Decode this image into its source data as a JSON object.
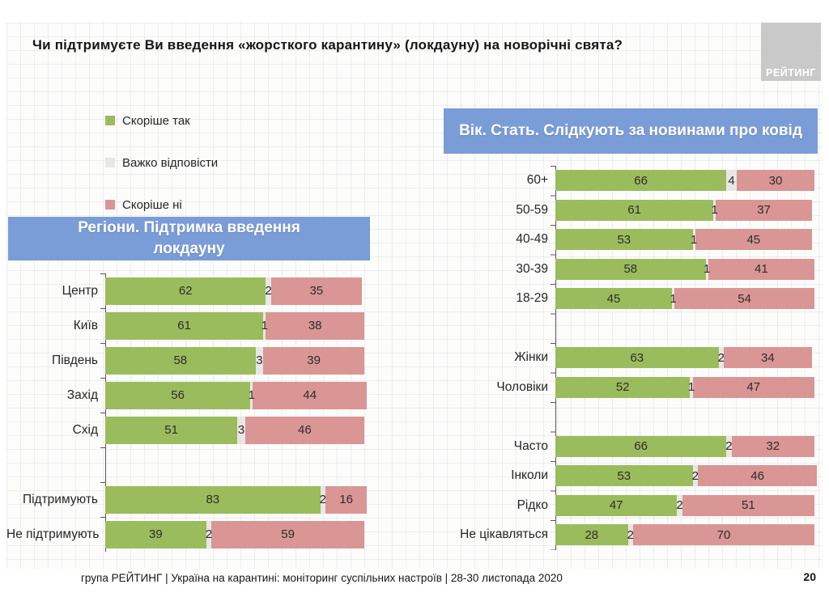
{
  "slide": {
    "title": "Чи підтримуєте Ви введення «жорсткого карантину» (локдауну) на новорічні свята?",
    "logo_text": "РЕЙТИНГ",
    "footer": "група РЕЙТИНГ | Україна на карантині: моніторинг суспільних настроїв | 28-30 листопада 2020",
    "page_number": "20"
  },
  "legend": {
    "items": [
      {
        "label": "Скоріше так",
        "color": "#9BBC5C"
      },
      {
        "label": "Важко відповісти",
        "color": "#E8E7E5"
      },
      {
        "label": "Скоріше ні",
        "color": "#D99694"
      }
    ]
  },
  "chart_data": [
    {
      "type": "bar",
      "orientation": "horizontal",
      "stacked": true,
      "title": "Регіони. Підтримка введення локдауну",
      "series_names": [
        "Скоріше так",
        "Важко відповісти",
        "Скоріше ні"
      ],
      "xlim": [
        0,
        100
      ],
      "grid": false,
      "legend_position": "top-left",
      "rows": [
        {
          "label": "Центр",
          "values": [
            62,
            2,
            35
          ]
        },
        {
          "label": "Київ",
          "values": [
            61,
            1,
            38
          ]
        },
        {
          "label": "Південь",
          "values": [
            58,
            3,
            39
          ]
        },
        {
          "label": "Захід",
          "values": [
            56,
            1,
            44
          ]
        },
        {
          "label": "Схід",
          "values": [
            51,
            3,
            46
          ]
        },
        {
          "spacer": true
        },
        {
          "label": "Підтримують",
          "values": [
            83,
            2,
            16
          ]
        },
        {
          "label": "Не підтримують",
          "values": [
            39,
            2,
            59
          ]
        }
      ]
    },
    {
      "type": "bar",
      "orientation": "horizontal",
      "stacked": true,
      "title": "Вік. Стать. Слідкують за новинами про ковід",
      "series_names": [
        "Скоріше так",
        "Важко відповісти",
        "Скоріше ні"
      ],
      "xlim": [
        0,
        100
      ],
      "grid": false,
      "legend_position": "top-left",
      "rows": [
        {
          "label": "60+",
          "values": [
            66,
            4,
            30
          ]
        },
        {
          "label": "50-59",
          "values": [
            61,
            1,
            37
          ]
        },
        {
          "label": "40-49",
          "values": [
            53,
            1,
            45
          ]
        },
        {
          "label": "30-39",
          "values": [
            58,
            1,
            41
          ]
        },
        {
          "label": "18-29",
          "values": [
            45,
            1,
            54
          ]
        },
        {
          "spacer": true
        },
        {
          "label": "Жінки",
          "values": [
            63,
            2,
            34
          ]
        },
        {
          "label": "Чоловіки",
          "values": [
            52,
            1,
            47
          ]
        },
        {
          "spacer": true
        },
        {
          "label": "Часто",
          "values": [
            66,
            2,
            32
          ]
        },
        {
          "label": "Інколи",
          "values": [
            53,
            2,
            46
          ]
        },
        {
          "label": "Рідко",
          "values": [
            47,
            2,
            51
          ]
        },
        {
          "label": "Не цікавляться",
          "values": [
            28,
            2,
            70
          ]
        }
      ]
    }
  ],
  "colors": {
    "yes": "#9BBC5C",
    "dont_know": "#E8E7E5",
    "no": "#D99694",
    "banner": "#7A9CD7",
    "logo_bg": "#C9C9C9"
  }
}
